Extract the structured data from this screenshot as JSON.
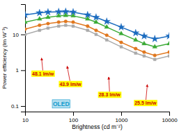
{
  "chart_data": {
    "type": "line",
    "log": true,
    "grid": false,
    "xlabel": "Brightness (cd m⁻²)",
    "ylabel": "Power efficiency (lm W⁻¹)",
    "xlim": [
      10,
      10000
    ],
    "ylim": [
      0.07,
      70
    ],
    "xticks": [
      10,
      100,
      1000,
      10000
    ],
    "yticks": [
      0.1,
      1,
      10
    ],
    "x": [
      10,
      20,
      30,
      50,
      70,
      100,
      200,
      300,
      500,
      1000,
      2000,
      3000,
      5000,
      10000
    ],
    "series": [
      {
        "color": "#1a6bbf",
        "marker": "star",
        "values": [
          35,
          40,
          42,
          43,
          43.5,
          42,
          35,
          30,
          23,
          16,
          11,
          9,
          7.5,
          9
        ]
      },
      {
        "color": "#3aaa35",
        "marker": "triangle",
        "values": [
          22,
          27,
          30,
          33,
          34,
          33,
          27,
          22,
          16,
          10.5,
          7,
          5.5,
          4.5,
          5.5
        ]
      },
      {
        "color": "#e07820",
        "marker": "circle",
        "values": [
          14,
          18,
          20,
          22,
          23,
          22,
          17,
          13,
          9.5,
          6,
          4,
          3.2,
          2.6,
          3.2
        ]
      },
      {
        "color": "#aaaaaa",
        "marker": "square",
        "values": [
          10,
          13,
          15,
          17,
          18,
          17,
          13,
          10,
          7,
          4.5,
          3,
          2.5,
          2.0,
          2.5
        ]
      }
    ],
    "annotations": [
      {
        "text": "48.1 lm/w",
        "x": 22,
        "y": 2.2,
        "text_x": 14,
        "text_y": 0.78,
        "color": "#cc0000"
      },
      {
        "text": "43.9 lm/w",
        "x": 75,
        "y": 1.3,
        "text_x": 52,
        "text_y": 0.4,
        "color": "#cc0000"
      },
      {
        "text": "28.3 lm/w",
        "x": 550,
        "y": 0.65,
        "text_x": 340,
        "text_y": 0.2,
        "color": "#cc0000"
      },
      {
        "text": "25.5 lm/w",
        "x": 3500,
        "y": 0.4,
        "text_x": 1900,
        "text_y": 0.118,
        "color": "#cc0000"
      },
      {
        "text": "OLED",
        "x": 38,
        "y": 0.092,
        "color": "#1199cc"
      }
    ]
  }
}
